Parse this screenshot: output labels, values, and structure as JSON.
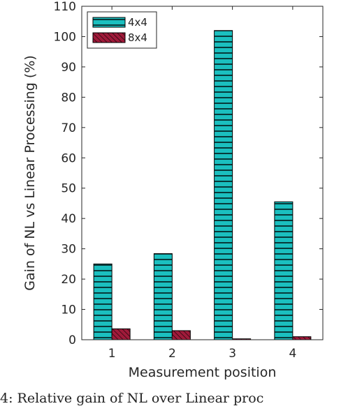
{
  "chart_data": {
    "type": "bar",
    "categories": [
      "1",
      "2",
      "3",
      "4"
    ],
    "series": [
      {
        "name": "4x4",
        "values": [
          25.0,
          28.4,
          102.0,
          45.5
        ],
        "color": "#1bbfbf",
        "pattern": "horizontal-stripes"
      },
      {
        "name": "8x4",
        "values": [
          3.6,
          3.0,
          0.3,
          1.0
        ],
        "color": "#a01a3a",
        "pattern": "diagonal-hatch"
      }
    ],
    "xlabel": "Measurement position",
    "ylabel": "Gain of NL vs Linear Processing (%)",
    "ylim": [
      0,
      110
    ],
    "yticks": [
      0,
      10,
      20,
      30,
      40,
      50,
      60,
      70,
      80,
      90,
      100,
      110
    ],
    "legend_position": "top-left",
    "grid": false
  },
  "caption": "4: Relative gain of NL over Linear proc"
}
